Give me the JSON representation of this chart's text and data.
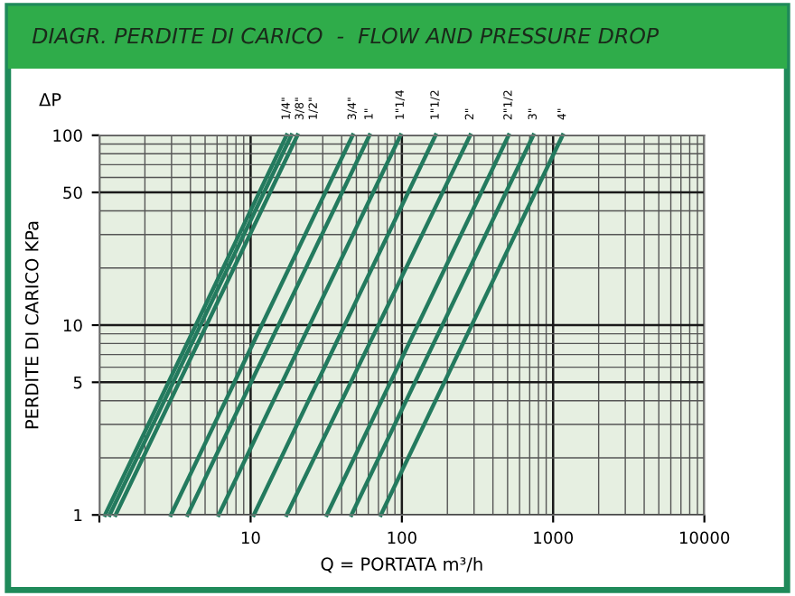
{
  "chart_data": {
    "type": "line",
    "title": "DIAGR. PERDITE DI CARICO  -  FLOW AND PRESSURE DROP",
    "xlabel": "Q = PORTATA m³/h",
    "ylabel": "PERDITE DI CARICO KPa",
    "annotations": [
      "ΔP"
    ],
    "log": "xy",
    "xlim": [
      1,
      10000
    ],
    "ylim": [
      1,
      100
    ],
    "xticks": [
      {
        "value": 1,
        "label": null
      },
      10,
      100,
      1000,
      10000
    ],
    "yticks": [
      1,
      5,
      10,
      50,
      100
    ],
    "grid": true,
    "legend": false,
    "marker": "none",
    "line_style": "solid",
    "series": [
      {
        "name": "1/4\"",
        "color": "#237a5e",
        "x": [
          1.09,
          17.3
        ],
        "values": [
          1,
          100
        ]
      },
      {
        "name": "3/8\"",
        "color": "#237a5e",
        "x": [
          1.17,
          18.6
        ],
        "values": [
          1,
          100
        ]
      },
      {
        "name": "1/2\"",
        "color": "#237a5e",
        "x": [
          1.28,
          20.4
        ],
        "values": [
          1,
          100
        ]
      },
      {
        "name": "3/4\"",
        "color": "#237a5e",
        "x": [
          2.97,
          47.3
        ],
        "values": [
          1,
          100
        ]
      },
      {
        "name": "1\"",
        "color": "#237a5e",
        "x": [
          3.83,
          61.1
        ],
        "values": [
          1,
          100
        ]
      },
      {
        "name": "1\"1/4",
        "color": "#237a5e",
        "x": [
          6.15,
          98
        ],
        "values": [
          1,
          100
        ]
      },
      {
        "name": "1\"1/2",
        "color": "#237a5e",
        "x": [
          10.5,
          167
        ],
        "values": [
          1,
          100
        ]
      },
      {
        "name": "2\"",
        "color": "#237a5e",
        "x": [
          17.3,
          283
        ],
        "values": [
          1,
          100
        ]
      },
      {
        "name": "2\"1/2",
        "color": "#237a5e",
        "x": [
          31.9,
          508
        ],
        "values": [
          1,
          100
        ]
      },
      {
        "name": "3\"",
        "color": "#237a5e",
        "x": [
          46.4,
          740
        ],
        "values": [
          1,
          100
        ]
      },
      {
        "name": "4\"",
        "color": "#237a5e",
        "x": [
          72.6,
          1156
        ],
        "values": [
          1,
          100
        ]
      }
    ]
  }
}
